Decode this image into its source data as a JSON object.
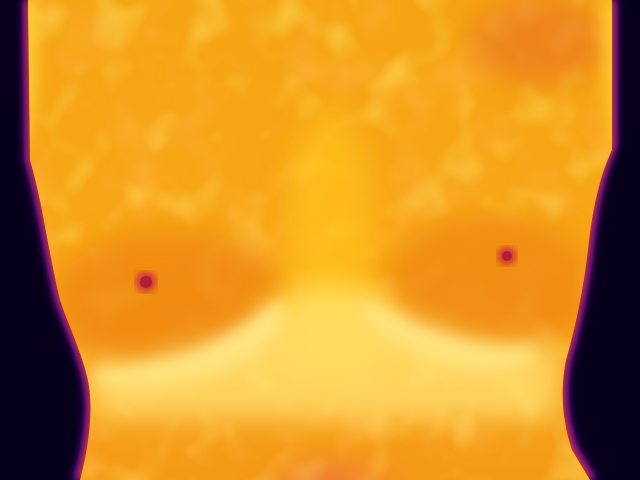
{
  "image": {
    "kind": "thermal-infrared-photograph",
    "palette": "ironbow",
    "palette_colors": {
      "coldest": "#06001a",
      "cold": "#2a0a6e",
      "cool": "#8a1aa8",
      "mid": "#d8452e",
      "warm": "#f07a12",
      "hot": "#ffc21a",
      "hottest": "#fff6c8"
    },
    "overlay_text": []
  }
}
